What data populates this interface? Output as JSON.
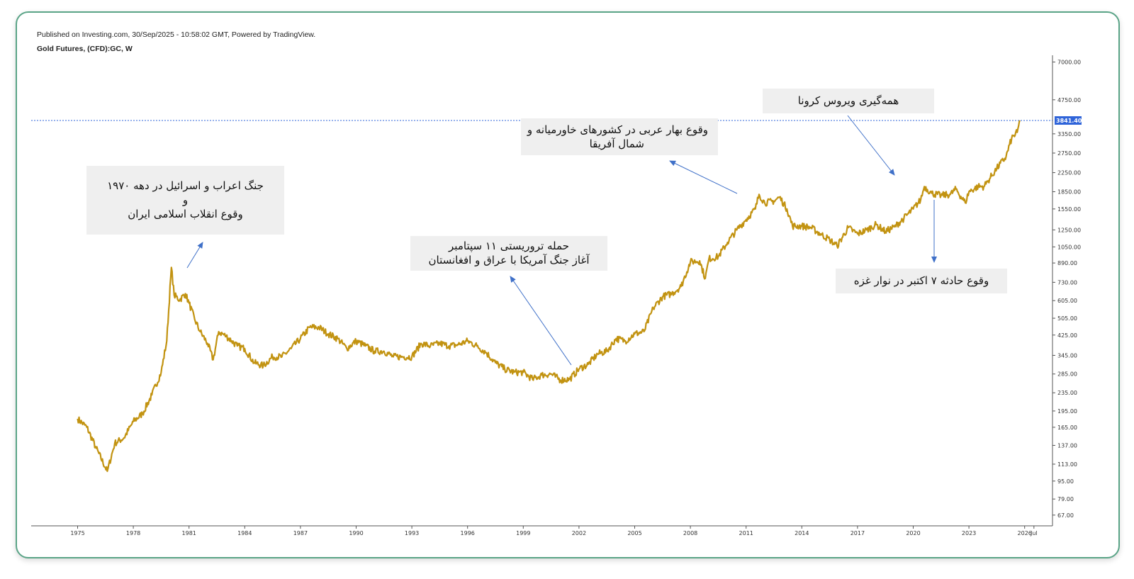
{
  "header": {
    "published": "Published on Investing.com, 30/Sep/2025 - 10:58:02 GMT, Powered by TradingView.",
    "symbol": "Gold Futures, (CFD):GC, W"
  },
  "annotations": {
    "war_1970s": {
      "line1": "جنگ اعراب و اسرائیل در دهه ۱۹۷۰",
      "line2": "و",
      "line3": "وقوع انقلاب اسلامی ایران"
    },
    "sept11": {
      "line1": "حمله تروریستی ۱۱ سپتامبر",
      "line2": "آغاز جنگ آمریکا با عراق و افغانستان"
    },
    "arab_spring": {
      "line1": "وقوع بهار عربی در کشورهای خاورمیانه و",
      "line2": "شمال آفریقا"
    },
    "covid": {
      "line1": "همه‌گیری ویروس کرونا"
    },
    "oct7": {
      "line1": "وقوع حادثه ۷ اکتبر در نوار غزه"
    }
  },
  "colors": {
    "line": "#c29311",
    "accent": "#2f64d9",
    "arrow": "#3f70c8",
    "frame": "#5aa487"
  },
  "chart_data": {
    "type": "line",
    "title": "Gold Futures, (CFD):GC, W",
    "y_scale": "log",
    "ylim": [
      60,
      7500
    ],
    "xlim": [
      1972.5,
      2027.5
    ],
    "y_ticks": [
      67,
      79,
      95,
      113,
      137,
      165,
      195,
      235,
      285,
      345,
      425,
      505,
      605,
      730,
      890,
      1050,
      1250,
      1550,
      1850,
      2250,
      2750,
      3350,
      4750,
      7000
    ],
    "y_tick_labels": [
      "67.00",
      "79.00",
      "95.00",
      "113.00",
      "137.00",
      "165.00",
      "195.00",
      "235.00",
      "285.00",
      "345.00",
      "425.00",
      "505.00",
      "605.00",
      "730.00",
      "890.00",
      "1050.00",
      "1250.00",
      "1550.00",
      "1850.00",
      "2250.00",
      "2750.00",
      "3350.00",
      "4750.00",
      "7000.00"
    ],
    "x_ticks": [
      1975,
      1978,
      1981,
      1984,
      1987,
      1990,
      1993,
      1996,
      1999,
      2002,
      2005,
      2008,
      2011,
      2014,
      2017,
      2020,
      2023,
      2026,
      2026.5
    ],
    "x_tick_labels": [
      "1975",
      "1978",
      "1981",
      "1984",
      "1987",
      "1990",
      "1993",
      "1996",
      "1999",
      "2002",
      "2005",
      "2008",
      "2011",
      "2014",
      "2017",
      "2020",
      "2023",
      "2026",
      "Jul"
    ],
    "last_price": 3841.4,
    "last_price_label": "3841.40",
    "series": [
      {
        "x": [
          1975.0,
          1975.5,
          1976.0,
          1976.6,
          1977.0,
          1977.5,
          1978.0,
          1978.5,
          1979.0,
          1979.5,
          1979.8,
          1980.05,
          1980.2,
          1980.5,
          1980.8,
          1981.0,
          1981.3,
          1981.6,
          1982.0,
          1982.3,
          1982.6,
          1983.0,
          1983.3,
          1983.6,
          1984.0,
          1984.5,
          1985.0,
          1985.5,
          1986.0,
          1986.5,
          1987.0,
          1987.5,
          1988.0,
          1988.5,
          1989.0,
          1989.5,
          1990.0,
          1990.5,
          1991.0,
          1991.5,
          1992.0,
          1992.5,
          1993.0,
          1993.5,
          1994.0,
          1994.5,
          1995.0,
          1995.5,
          1996.0,
          1996.5,
          1997.0,
          1997.5,
          1998.0,
          1998.5,
          1999.0,
          1999.5,
          2000.0,
          2000.5,
          2001.0,
          2001.5,
          2002.0,
          2002.5,
          2003.0,
          2003.5,
          2004.0,
          2004.5,
          2005.0,
          2005.5,
          2006.0,
          2006.5,
          2007.0,
          2007.5,
          2008.0,
          2008.5,
          2008.8,
          2009.0,
          2009.5,
          2010.0,
          2010.5,
          2011.0,
          2011.5,
          2011.7,
          2012.0,
          2012.5,
          2012.8,
          2013.2,
          2013.5,
          2014.0,
          2014.5,
          2015.0,
          2015.5,
          2015.9,
          2016.5,
          2017.0,
          2017.5,
          2018.0,
          2018.5,
          2019.0,
          2019.5,
          2020.0,
          2020.4,
          2020.6,
          2021.0,
          2021.5,
          2022.0,
          2022.3,
          2022.8,
          2023.0,
          2023.5,
          2023.8,
          2024.0,
          2024.5,
          2025.0,
          2025.3,
          2025.6,
          2025.75
        ],
        "y": [
          180,
          165,
          133,
          105,
          140,
          148,
          175,
          190,
          230,
          290,
          400,
          850,
          640,
          610,
          650,
          590,
          500,
          440,
          390,
          330,
          440,
          420,
          400,
          380,
          370,
          320,
          310,
          340,
          340,
          370,
          410,
          460,
          460,
          430,
          410,
          370,
          400,
          380,
          360,
          360,
          340,
          340,
          340,
          390,
          380,
          390,
          380,
          385,
          400,
          380,
          355,
          320,
          300,
          290,
          290,
          270,
          282,
          285,
          268,
          270,
          300,
          315,
          350,
          360,
          410,
          400,
          430,
          440,
          560,
          630,
          650,
          700,
          900,
          910,
          760,
          930,
          950,
          1100,
          1250,
          1390,
          1550,
          1800,
          1650,
          1680,
          1750,
          1550,
          1300,
          1300,
          1280,
          1200,
          1130,
          1060,
          1280,
          1200,
          1250,
          1320,
          1230,
          1290,
          1410,
          1550,
          1700,
          1950,
          1820,
          1780,
          1800,
          1900,
          1650,
          1850,
          1950,
          1950,
          2050,
          2350,
          2650,
          3200,
          3400,
          3841
        ]
      }
    ]
  }
}
